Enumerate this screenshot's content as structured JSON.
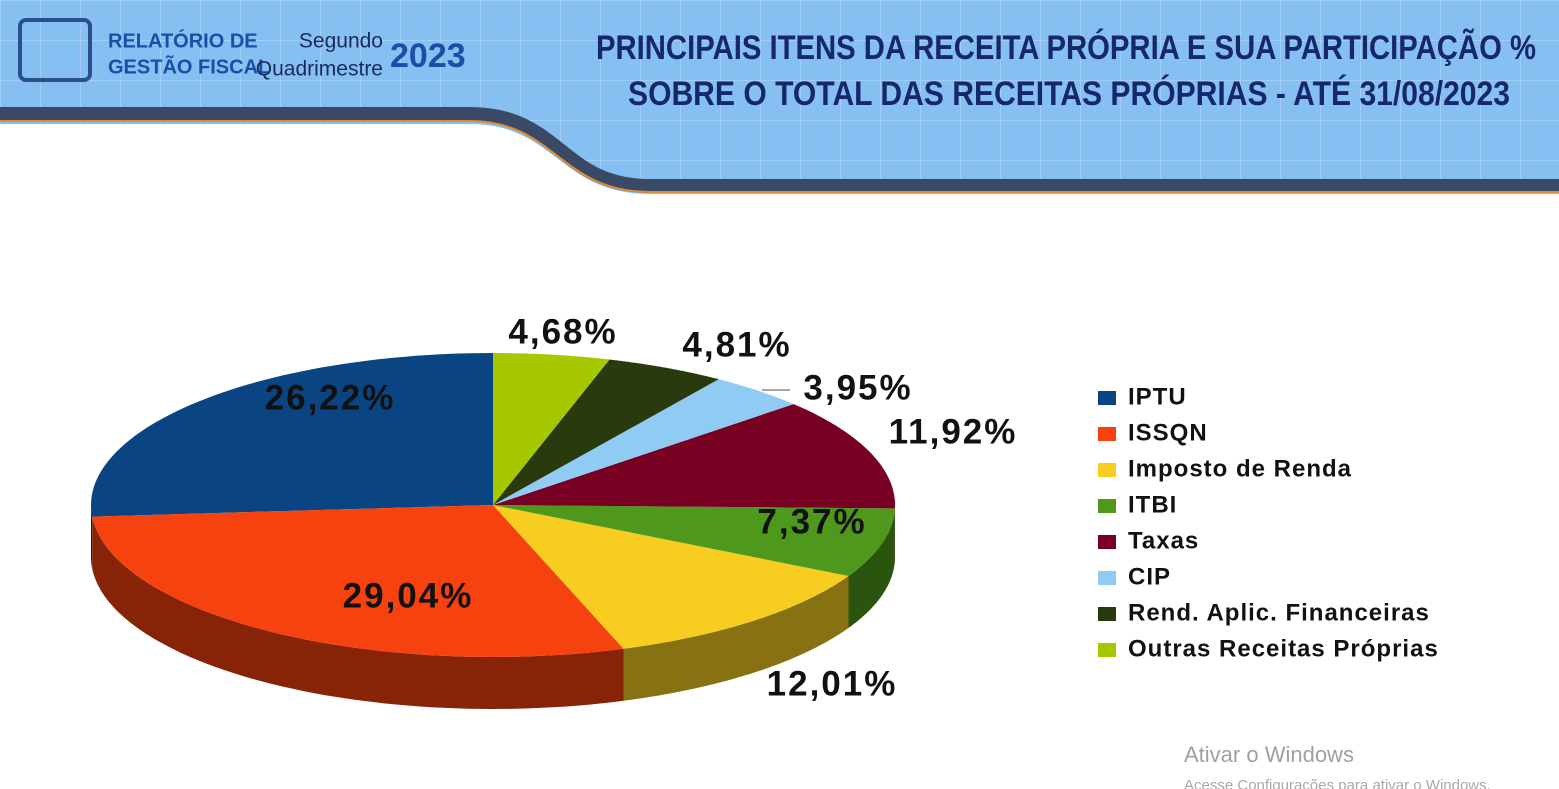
{
  "header": {
    "logo_lines": [
      "RELATÓRIO DE",
      "GESTÃO FISCAL"
    ],
    "period_lines": [
      "Segundo",
      "Quadrimestre"
    ],
    "year": "2023"
  },
  "chart_data": {
    "type": "pie",
    "title": [
      "PRINCIPAIS ITENS DA RECEITA PRÓPRIA E SUA PARTICIPAÇÃO %",
      "SOBRE O TOTAL DAS RECEITAS PRÓPRIAS  - ATÉ 31/08/2023"
    ],
    "categories": [
      "IPTU",
      "ISSQN",
      "Imposto de Renda",
      "ITBI",
      "Taxas",
      "CIP",
      "Rend. Aplic. Financeiras",
      "Outras Receitas Próprias"
    ],
    "values": [
      26.22,
      29.04,
      12.01,
      7.37,
      11.92,
      3.95,
      4.81,
      4.68
    ],
    "value_labels": [
      "26,22%",
      "29,04%",
      "12,01%",
      "7,37%",
      "11,92%",
      "3,95%",
      "4,81%",
      "4,68%"
    ],
    "colors": [
      "#0b4482",
      "#f5420f",
      "#f8cd22",
      "#4e981c",
      "#780022",
      "#8fcbf3",
      "#2a3a0f",
      "#a6c800"
    ],
    "legend": "right"
  },
  "watermark": {
    "title": "Ativar o Windows",
    "text": "Acesse Configurações para ativar o Windows."
  }
}
